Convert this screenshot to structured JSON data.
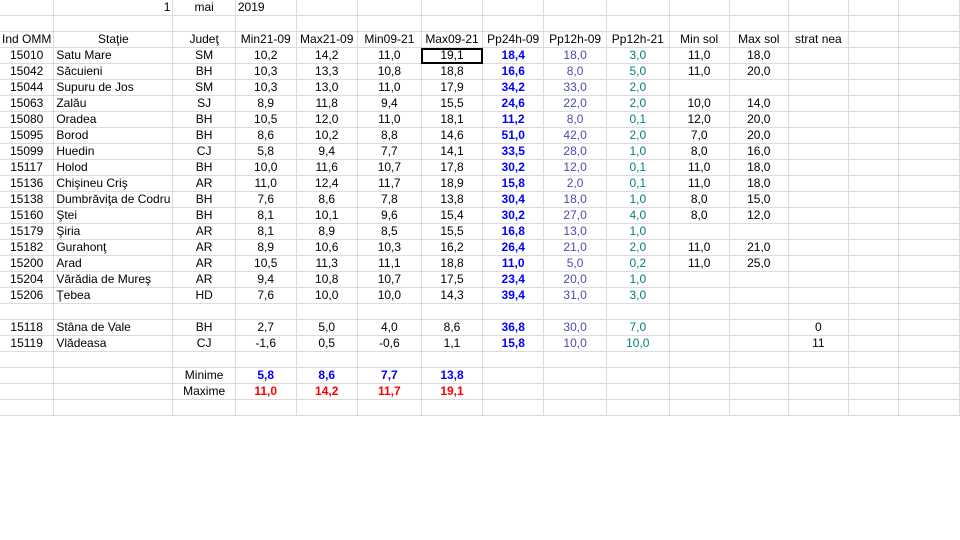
{
  "date": {
    "day": "1",
    "month": "mai",
    "year": "2019"
  },
  "headers": [
    "Ind OMM",
    "Staţie",
    "Judeţ",
    "Min21-09",
    "Max21-09",
    "Min09-21",
    "Max09-21",
    "Pp24h-09",
    "Pp12h-09",
    "Pp12h-21",
    "Min sol",
    "Max sol",
    "strat nea"
  ],
  "rows": [
    [
      "15010",
      "Satu Mare",
      "SM",
      "10,2",
      "14,2",
      "11,0",
      "19,1",
      "18,4",
      "18,0",
      "3,0",
      "11,0",
      "18,0",
      ""
    ],
    [
      "15042",
      "Săcuieni",
      "BH",
      "10,3",
      "13,3",
      "10,8",
      "18,8",
      "16,6",
      "8,0",
      "5,0",
      "11,0",
      "20,0",
      ""
    ],
    [
      "15044",
      "Supuru de Jos",
      "SM",
      "10,3",
      "13,0",
      "11,0",
      "17,9",
      "34,2",
      "33,0",
      "2,0",
      "",
      "",
      ""
    ],
    [
      "15063",
      "Zalău",
      "SJ",
      "8,9",
      "11,8",
      "9,4",
      "15,5",
      "24,6",
      "22,0",
      "2,0",
      "10,0",
      "14,0",
      ""
    ],
    [
      "15080",
      "Oradea",
      "BH",
      "10,5",
      "12,0",
      "11,0",
      "18,1",
      "11,2",
      "8,0",
      "0,1",
      "12,0",
      "20,0",
      ""
    ],
    [
      "15095",
      "Borod",
      "BH",
      "8,6",
      "10,2",
      "8,8",
      "14,6",
      "51,0",
      "42,0",
      "2,0",
      "7,0",
      "20,0",
      ""
    ],
    [
      "15099",
      "Huedin",
      "CJ",
      "5,8",
      "9,4",
      "7,7",
      "14,1",
      "33,5",
      "28,0",
      "1,0",
      "8,0",
      "16,0",
      ""
    ],
    [
      "15117",
      "Holod",
      "BH",
      "10,0",
      "11,6",
      "10,7",
      "17,8",
      "30,2",
      "12,0",
      "0,1",
      "11,0",
      "18,0",
      ""
    ],
    [
      "15136",
      "Chişineu     Criş",
      "AR",
      "11,0",
      "12,4",
      "11,7",
      "18,9",
      "15,8",
      "2,0",
      "0,1",
      "11,0",
      "18,0",
      ""
    ],
    [
      "15138",
      "Dumbrăviţa  de Codru",
      "BH",
      "7,6",
      "8,6",
      "7,8",
      "13,8",
      "30,4",
      "18,0",
      "1,0",
      "8,0",
      "15,0",
      ""
    ],
    [
      "15160",
      "Ştei",
      "BH",
      "8,1",
      "10,1",
      "9,6",
      "15,4",
      "30,2",
      "27,0",
      "4,0",
      "8,0",
      "12,0",
      ""
    ],
    [
      "15179",
      "Şiria",
      "AR",
      "8,1",
      "8,9",
      "8,5",
      "15,5",
      "16,8",
      "13,0",
      "1,0",
      "",
      "",
      ""
    ],
    [
      "15182",
      "Gurahonţ",
      "AR",
      "8,9",
      "10,6",
      "10,3",
      "16,2",
      "26,4",
      "21,0",
      "2,0",
      "11,0",
      "21,0",
      ""
    ],
    [
      "15200",
      "Arad",
      "AR",
      "10,5",
      "11,3",
      "11,1",
      "18,8",
      "11,0",
      "5,0",
      "0,2",
      "11,0",
      "25,0",
      ""
    ],
    [
      "15204",
      "Vărădia de Mureş",
      "AR",
      "9,4",
      "10,8",
      "10,7",
      "17,5",
      "23,4",
      "20,0",
      "1,0",
      "",
      "",
      ""
    ],
    [
      "15206",
      "Ţebea",
      "HD",
      "7,6",
      "10,0",
      "10,0",
      "14,3",
      "39,4",
      "31,0",
      "3,0",
      "",
      "",
      ""
    ]
  ],
  "mountain_rows": [
    [
      "15118",
      "Stâna de Vale",
      "BH",
      "2,7",
      "5,0",
      "4,0",
      "8,6",
      "36,8",
      "30,0",
      "7,0",
      "",
      "",
      "0"
    ],
    [
      "15119",
      "Vlădeasa",
      "CJ",
      "-1,6",
      "0,5",
      "-0,6",
      "1,1",
      "15,8",
      "10,0",
      "10,0",
      "",
      "",
      "11"
    ]
  ],
  "summary": {
    "min_label": "Minime",
    "max_label": "Maxime",
    "minime": [
      "5,8",
      "8,6",
      "7,7",
      "13,8"
    ],
    "maxime": [
      "11,0",
      "14,2",
      "11,7",
      "19,1"
    ]
  },
  "colors": {
    "pp24": "#0000ff",
    "pp12_09": "#4b4bb0",
    "pp12_21": "#008080",
    "maxime": "#ff0000",
    "grid": "#dcdcdc"
  },
  "selected_cell": "19,1"
}
